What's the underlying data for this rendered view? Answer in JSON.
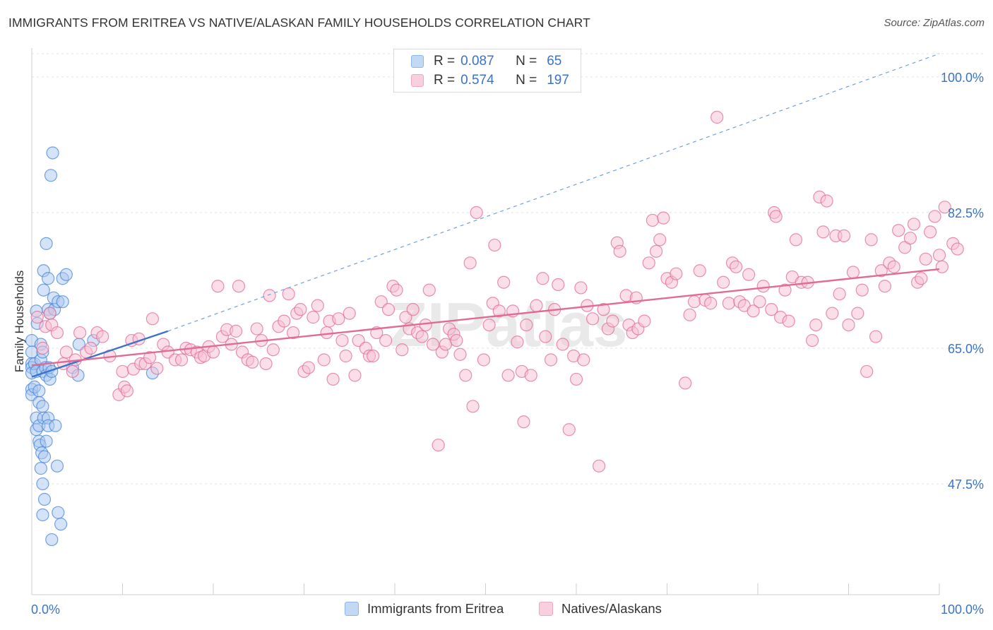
{
  "title": "IMMIGRANTS FROM ERITREA VS NATIVE/ALASKAN FAMILY HOUSEHOLDS CORRELATION CHART",
  "source": "Source: ZipAtlas.com",
  "watermark": "ZIPatlas",
  "legend": {
    "rows": [
      {
        "r_label": "R =",
        "r_value": "0.087",
        "n_label": "N =",
        "n_value": "65",
        "color": "#8fb6e8"
      },
      {
        "r_label": "R =",
        "r_value": "0.574",
        "n_label": "N =",
        "n_value": "197",
        "color": "#f2a7c0"
      }
    ]
  },
  "bottom_legend": [
    {
      "label": "Immigrants from Eritrea",
      "color": "#8fb6e8"
    },
    {
      "label": "Natives/Alaskans",
      "color": "#f2a7c0"
    }
  ],
  "chart_data": {
    "type": "scatter",
    "title": "IMMIGRANTS FROM ERITREA VS NATIVE/ALASKAN FAMILY HOUSEHOLDS CORRELATION CHART",
    "xlabel": "",
    "ylabel": "Family Households",
    "xlim": [
      0,
      100
    ],
    "ylim": [
      33.2,
      103
    ],
    "x_tick_labels": [
      "0.0%",
      "100.0%"
    ],
    "y_ticks": [
      47.5,
      65.0,
      82.5,
      100.0
    ],
    "y_tick_labels": [
      "47.5%",
      "65.0%",
      "82.5%",
      "100.0%"
    ],
    "grid": true,
    "series": [
      {
        "name": "Immigrants from Eritrea",
        "color": "#4a86d8",
        "fill": "#aac8f0",
        "trend": {
          "x": [
            0,
            15
          ],
          "y": [
            61.3,
            67.2
          ],
          "extended_to": [
            100,
            103
          ]
        },
        "points": [
          [
            0.0,
            66.0
          ],
          [
            0.0,
            64.5
          ],
          [
            0.0,
            63.0
          ],
          [
            0.0,
            62.5
          ],
          [
            0.0,
            61.8
          ],
          [
            0.0,
            59.7
          ],
          [
            0.0,
            59.0
          ],
          [
            0.3,
            63.0
          ],
          [
            0.3,
            60.0
          ],
          [
            0.5,
            69.8
          ],
          [
            0.5,
            62.0
          ],
          [
            0.5,
            56.0
          ],
          [
            0.5,
            54.5
          ],
          [
            0.6,
            68.2
          ],
          [
            0.8,
            59.5
          ],
          [
            0.8,
            58.0
          ],
          [
            0.8,
            55.0
          ],
          [
            0.8,
            53.0
          ],
          [
            0.9,
            52.5
          ],
          [
            1.0,
            65.5
          ],
          [
            1.0,
            63.5
          ],
          [
            1.0,
            49.5
          ],
          [
            1.1,
            51.5
          ],
          [
            1.2,
            64.5
          ],
          [
            1.2,
            62.0
          ],
          [
            1.2,
            57.5
          ],
          [
            1.2,
            47.5
          ],
          [
            1.2,
            43.5
          ],
          [
            1.3,
            75.0
          ],
          [
            1.3,
            72.5
          ],
          [
            1.3,
            56.0
          ],
          [
            1.4,
            51.0
          ],
          [
            1.4,
            45.5
          ],
          [
            1.5,
            62.5
          ],
          [
            1.6,
            78.5
          ],
          [
            1.6,
            61.5
          ],
          [
            1.6,
            53.0
          ],
          [
            1.8,
            74.0
          ],
          [
            1.8,
            70.0
          ],
          [
            1.8,
            56.0
          ],
          [
            1.8,
            55.0
          ],
          [
            1.9,
            62.5
          ],
          [
            2.0,
            69.5
          ],
          [
            2.0,
            61.0
          ],
          [
            2.2,
            40.3
          ],
          [
            2.2,
            62.0
          ],
          [
            2.3,
            90.2
          ],
          [
            2.1,
            87.3
          ],
          [
            2.4,
            71.5
          ],
          [
            2.5,
            70.0
          ],
          [
            2.6,
            55.0
          ],
          [
            2.8,
            49.8
          ],
          [
            2.9,
            43.8
          ],
          [
            2.9,
            71.0
          ],
          [
            3.2,
            42.3
          ],
          [
            3.4,
            74.0
          ],
          [
            3.4,
            71.0
          ],
          [
            3.8,
            74.5
          ],
          [
            4.5,
            62.5
          ],
          [
            5.1,
            61.5
          ],
          [
            5.2,
            65.5
          ],
          [
            6.8,
            66.0
          ],
          [
            13.3,
            61.8
          ]
        ]
      },
      {
        "name": "Natives/Alaskans",
        "color": "#e06b96",
        "fill": "#f7bfd2",
        "trend": {
          "x": [
            0,
            100
          ],
          "y": [
            62.8,
            75.2
          ]
        },
        "points": [
          [
            0.6,
            69.0
          ],
          [
            1.2,
            65.0
          ],
          [
            1.5,
            67.8
          ],
          [
            2.0,
            69.5
          ],
          [
            2.2,
            68.0
          ],
          [
            2.8,
            67.0
          ],
          [
            3.5,
            63.0
          ],
          [
            3.8,
            64.5
          ],
          [
            4.5,
            62.0
          ],
          [
            4.8,
            63.5
          ],
          [
            5.3,
            67.0
          ],
          [
            6.0,
            64.5
          ],
          [
            6.5,
            65.0
          ],
          [
            7.2,
            67.0
          ],
          [
            7.8,
            66.5
          ],
          [
            8.6,
            64.0
          ],
          [
            9.6,
            59.0
          ],
          [
            10.0,
            62.0
          ],
          [
            10.2,
            60.0
          ],
          [
            10.5,
            59.5
          ],
          [
            11.0,
            66.0
          ],
          [
            11.2,
            62.3
          ],
          [
            11.8,
            66.2
          ],
          [
            12.0,
            63.0
          ],
          [
            12.5,
            63.0
          ],
          [
            13.0,
            63.8
          ],
          [
            13.3,
            68.8
          ],
          [
            13.8,
            62.4
          ],
          [
            14.5,
            65.5
          ],
          [
            15.0,
            64.5
          ],
          [
            15.8,
            63.5
          ],
          [
            16.5,
            63.5
          ],
          [
            17.0,
            65.0
          ],
          [
            17.5,
            64.8
          ],
          [
            18.2,
            64.5
          ],
          [
            18.6,
            63.8
          ],
          [
            19.0,
            64.0
          ],
          [
            19.5,
            65.2
          ],
          [
            20.0,
            64.5
          ],
          [
            20.5,
            73.0
          ],
          [
            21.0,
            66.5
          ],
          [
            21.5,
            67.4
          ],
          [
            22.0,
            65.5
          ],
          [
            22.5,
            67.2
          ],
          [
            22.8,
            73.0
          ],
          [
            23.2,
            64.5
          ],
          [
            23.8,
            63.5
          ],
          [
            24.3,
            63.2
          ],
          [
            24.8,
            67.5
          ],
          [
            25.3,
            66.0
          ],
          [
            25.8,
            63.0
          ],
          [
            26.2,
            71.8
          ],
          [
            26.6,
            64.8
          ],
          [
            27.2,
            67.8
          ],
          [
            27.8,
            68.5
          ],
          [
            28.3,
            72.0
          ],
          [
            28.8,
            67.0
          ],
          [
            29.2,
            69.5
          ],
          [
            29.6,
            70.0
          ],
          [
            30.0,
            62.0
          ],
          [
            30.5,
            62.5
          ],
          [
            31.0,
            69.0
          ],
          [
            31.5,
            70.5
          ],
          [
            32.2,
            63.5
          ],
          [
            32.5,
            67.0
          ],
          [
            32.8,
            68.5
          ],
          [
            33.2,
            61.0
          ],
          [
            33.8,
            68.8
          ],
          [
            34.2,
            66.0
          ],
          [
            34.6,
            64.0
          ],
          [
            35.0,
            69.5
          ],
          [
            35.6,
            61.5
          ],
          [
            36.0,
            66.0
          ],
          [
            36.8,
            65.0
          ],
          [
            37.2,
            64.0
          ],
          [
            37.6,
            64.0
          ],
          [
            38.0,
            67.0
          ],
          [
            38.5,
            71.0
          ],
          [
            39.0,
            66.0
          ],
          [
            39.3,
            70.0
          ],
          [
            39.8,
            73.0
          ],
          [
            40.2,
            72.5
          ],
          [
            40.8,
            64.8
          ],
          [
            41.2,
            69.0
          ],
          [
            41.6,
            67.5
          ],
          [
            42.0,
            70.0
          ],
          [
            42.5,
            67.0
          ],
          [
            43.0,
            66.5
          ],
          [
            43.4,
            68.0
          ],
          [
            43.8,
            72.5
          ],
          [
            44.2,
            65.5
          ],
          [
            44.8,
            52.5
          ],
          [
            45.2,
            64.5
          ],
          [
            45.6,
            65.5
          ],
          [
            46.0,
            67.5
          ],
          [
            46.5,
            66.8
          ],
          [
            46.8,
            66.0
          ],
          [
            47.2,
            64.2
          ],
          [
            47.8,
            61.5
          ],
          [
            48.3,
            76.0
          ],
          [
            48.6,
            57.5
          ],
          [
            49.0,
            82.5
          ],
          [
            49.8,
            63.5
          ],
          [
            50.4,
            68.0
          ],
          [
            50.8,
            70.8
          ],
          [
            51.0,
            78.3
          ],
          [
            51.5,
            69.8
          ],
          [
            52.0,
            73.5
          ],
          [
            52.5,
            61.5
          ],
          [
            53.0,
            69.8
          ],
          [
            53.5,
            65.8
          ],
          [
            54.0,
            62.0
          ],
          [
            54.2,
            55.5
          ],
          [
            54.5,
            68.0
          ],
          [
            55.0,
            61.5
          ],
          [
            55.6,
            70.5
          ],
          [
            56.3,
            74.0
          ],
          [
            56.6,
            66.5
          ],
          [
            57.2,
            63.5
          ],
          [
            57.6,
            70.0
          ],
          [
            58.0,
            73.2
          ],
          [
            58.5,
            65.5
          ],
          [
            59.2,
            54.5
          ],
          [
            59.7,
            64.0
          ],
          [
            60.0,
            61.0
          ],
          [
            60.5,
            72.8
          ],
          [
            60.8,
            63.5
          ],
          [
            61.2,
            70.5
          ],
          [
            61.8,
            68.8
          ],
          [
            62.5,
            49.8
          ],
          [
            63.0,
            70.0
          ],
          [
            63.5,
            67.5
          ],
          [
            64.0,
            68.5
          ],
          [
            64.5,
            78.6
          ],
          [
            64.8,
            77.5
          ],
          [
            65.5,
            71.8
          ],
          [
            65.8,
            68.0
          ],
          [
            66.2,
            67.0
          ],
          [
            66.6,
            71.5
          ],
          [
            66.8,
            67.5
          ],
          [
            67.5,
            68.5
          ],
          [
            68.0,
            76.0
          ],
          [
            68.4,
            81.5
          ],
          [
            68.8,
            77.5
          ],
          [
            69.2,
            79.0
          ],
          [
            69.6,
            81.8
          ],
          [
            70.0,
            74.0
          ],
          [
            70.5,
            73.5
          ],
          [
            71.0,
            74.6
          ],
          [
            72.0,
            60.5
          ],
          [
            72.5,
            69.3
          ],
          [
            73.0,
            71.0
          ],
          [
            73.6,
            75.0
          ],
          [
            74.2,
            71.2
          ],
          [
            74.8,
            70.8
          ],
          [
            75.5,
            94.8
          ],
          [
            76.2,
            73.5
          ],
          [
            76.8,
            70.8
          ],
          [
            77.2,
            76.0
          ],
          [
            77.6,
            75.5
          ],
          [
            78.0,
            71.0
          ],
          [
            78.5,
            70.5
          ],
          [
            79.0,
            74.5
          ],
          [
            79.5,
            69.8
          ],
          [
            80.2,
            71.0
          ],
          [
            80.6,
            73.0
          ],
          [
            81.5,
            70.0
          ],
          [
            81.8,
            82.5
          ],
          [
            82.0,
            82.0
          ],
          [
            82.5,
            69.0
          ],
          [
            83.0,
            72.5
          ],
          [
            83.4,
            68.5
          ],
          [
            83.8,
            74.2
          ],
          [
            84.2,
            79.0
          ],
          [
            84.8,
            73.5
          ],
          [
            85.5,
            73.5
          ],
          [
            86.0,
            66.0
          ],
          [
            86.4,
            68.0
          ],
          [
            86.8,
            84.5
          ],
          [
            87.2,
            80.0
          ],
          [
            87.6,
            84.0
          ],
          [
            88.2,
            69.5
          ],
          [
            88.6,
            79.5
          ],
          [
            89.0,
            72.0
          ],
          [
            89.5,
            79.5
          ],
          [
            90.0,
            68.0
          ],
          [
            90.5,
            74.8
          ],
          [
            91.0,
            69.5
          ],
          [
            91.5,
            72.5
          ],
          [
            92.0,
            62.0
          ],
          [
            92.5,
            79.0
          ],
          [
            93.0,
            66.5
          ],
          [
            93.6,
            75.0
          ],
          [
            94.0,
            73.0
          ],
          [
            94.5,
            76.0
          ],
          [
            95.0,
            75.5
          ],
          [
            95.5,
            80.2
          ],
          [
            96.2,
            78.0
          ],
          [
            96.8,
            79.2
          ],
          [
            97.2,
            81.0
          ],
          [
            97.6,
            73.5
          ],
          [
            98.0,
            74.0
          ],
          [
            98.5,
            76.5
          ],
          [
            99.0,
            80.0
          ],
          [
            99.5,
            82.0
          ],
          [
            100.0,
            77.0
          ],
          [
            100.3,
            75.5
          ],
          [
            100.6,
            83.2
          ],
          [
            101.5,
            78.5
          ],
          [
            102.0,
            77.8
          ]
        ]
      }
    ]
  }
}
